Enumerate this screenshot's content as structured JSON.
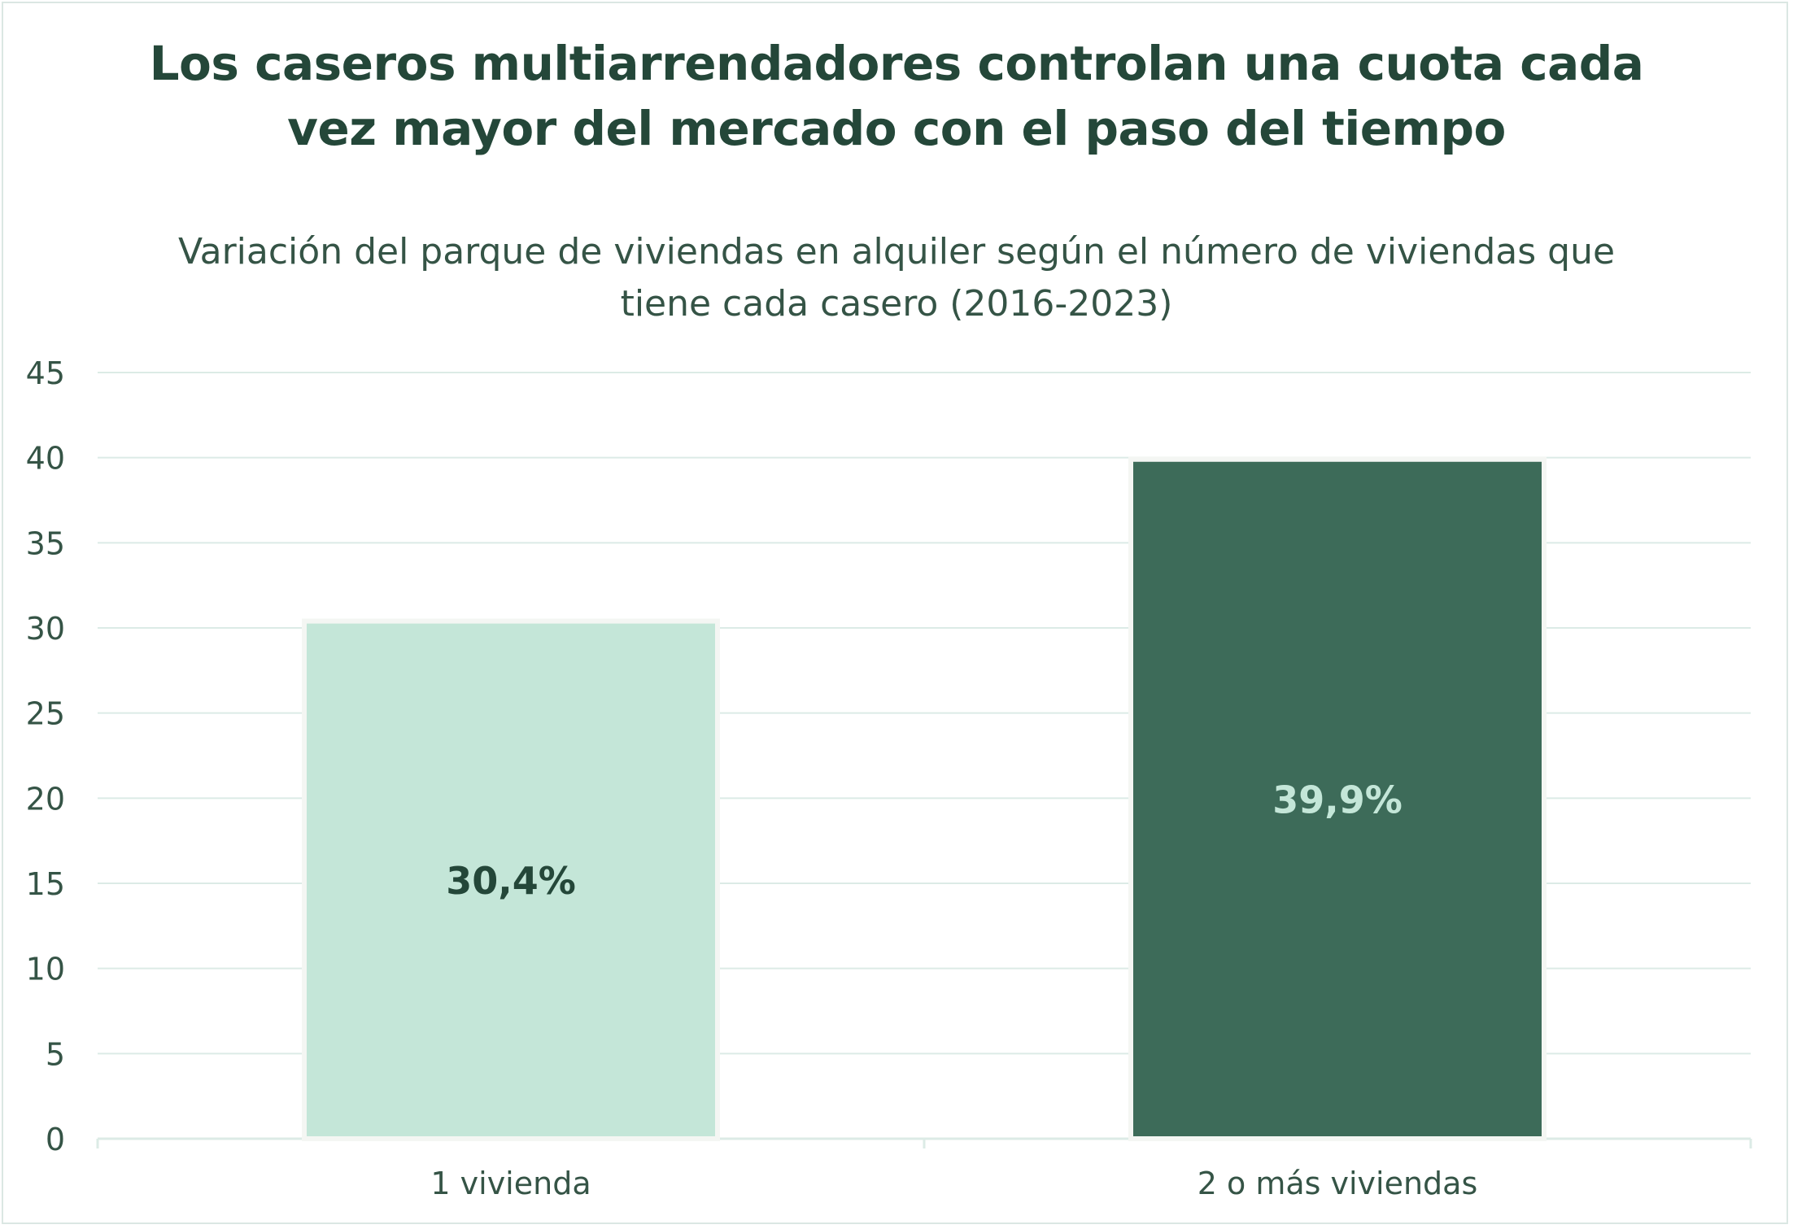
{
  "title_lines": [
    "Los caseros multiarrendadores controlan una cuota cada",
    "vez mayor del mercado con el paso del tiempo"
  ],
  "subtitle_lines": [
    "Variación del parque de viviendas en alquiler según el número de viviendas que",
    "tiene cada casero (2016-2023)"
  ],
  "colors": {
    "title": "#244739",
    "text": "#355446",
    "grid": "#dcebe6",
    "bar_light": "#c4e6d8",
    "bar_dark": "#3d6b59",
    "label_on_light": "#244739",
    "label_on_dark": "#c4e6d8"
  },
  "chart_data": {
    "type": "bar",
    "categories": [
      "1 vivienda",
      "2 o más viviendas"
    ],
    "values": [
      30.4,
      39.9
    ],
    "data_labels": [
      "30,4%",
      "39,9%"
    ],
    "bar_colors": [
      "#c4e6d8",
      "#3d6b59"
    ],
    "label_colors": [
      "#244739",
      "#c4e6d8"
    ],
    "title": "Los caseros multiarrendadores controlan una cuota cada vez mayor del mercado con el paso del tiempo",
    "subtitle": "Variación del parque de viviendas en alquiler según el número de viviendas que tiene cada casero (2016-2023)",
    "xlabel": "",
    "ylabel": "",
    "ylim": [
      0,
      45
    ],
    "yticks": [
      "0",
      "5",
      "10",
      "15",
      "20",
      "25",
      "30",
      "35",
      "40",
      "45"
    ],
    "grid": true,
    "legend": "none"
  }
}
